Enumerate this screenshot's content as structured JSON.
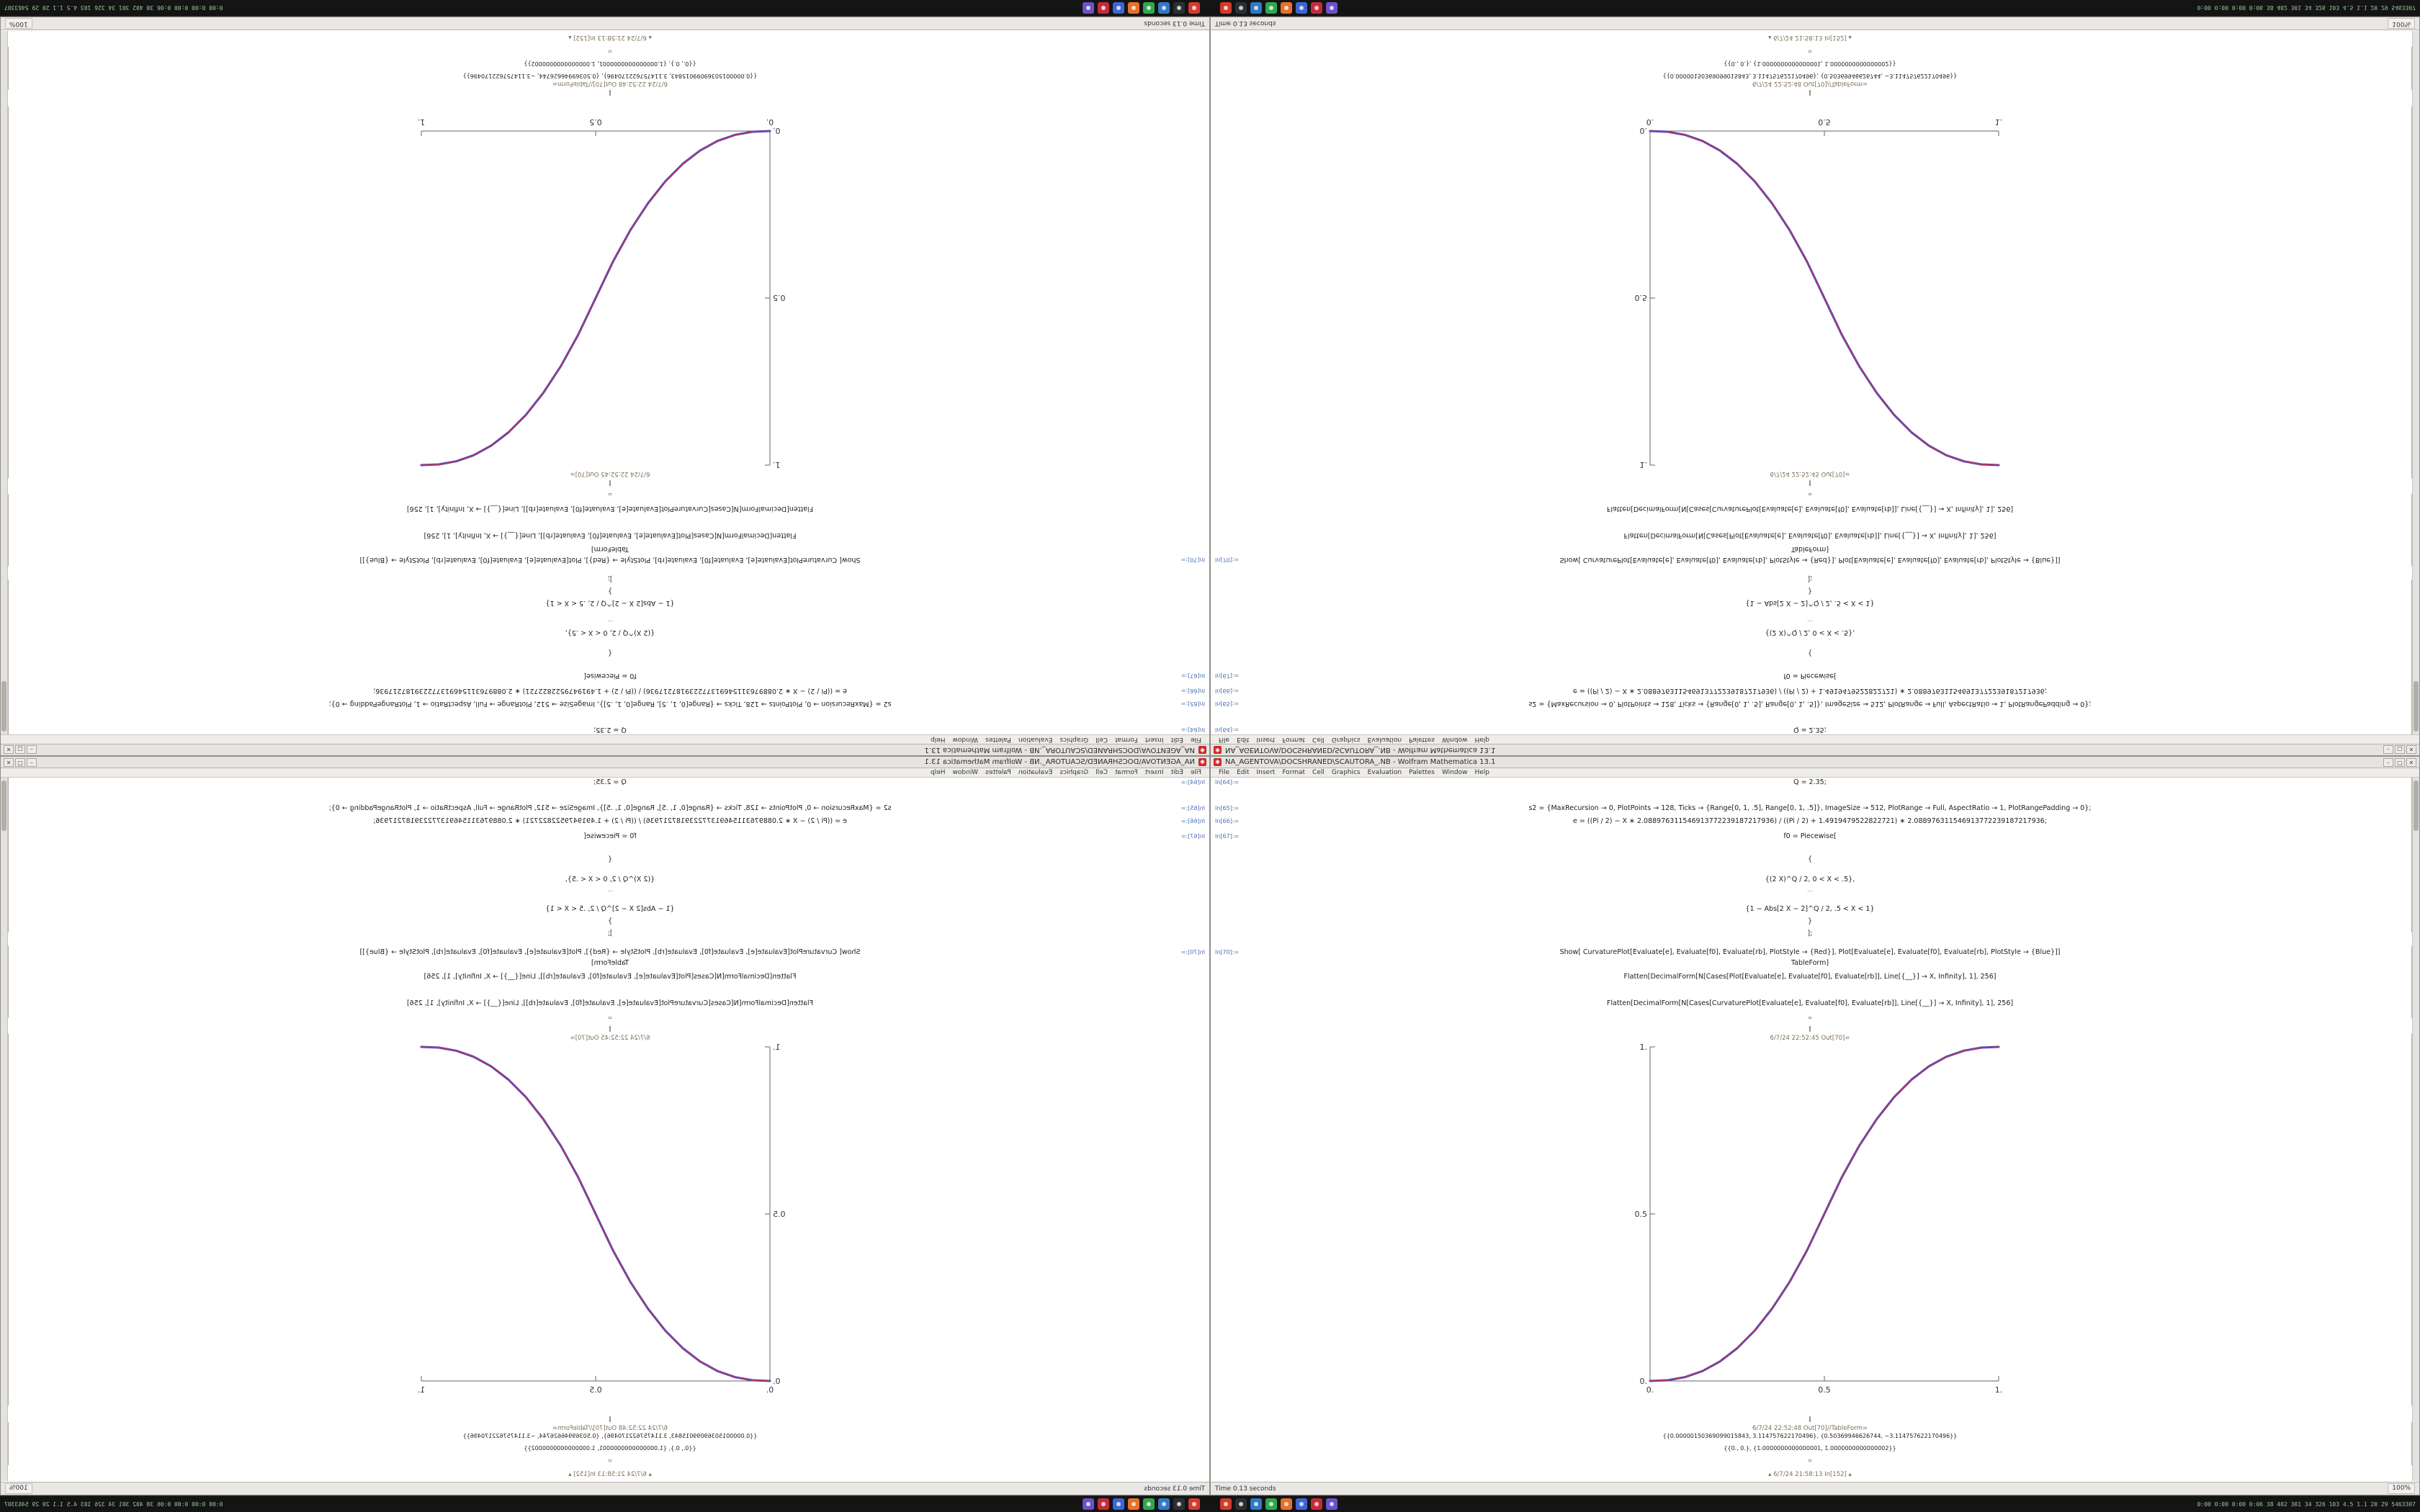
{
  "window": {
    "title": "NA_AGENTOVA\\DOCSHRANED\\SCAUTORA_.NB - Wolfram Mathematica 13.1",
    "app_icon_glyph": "✱",
    "menu": [
      "File",
      "Edit",
      "Insert",
      "Format",
      "Cell",
      "Graphics",
      "Evaluation",
      "Palettes",
      "Window",
      "Help"
    ],
    "controls": {
      "minimize": "–",
      "maximize": "□",
      "close": "✕"
    },
    "status": {
      "time": "Time 0.13 seconds",
      "zoom": "100%"
    }
  },
  "notebook": {
    "in_labels": [
      {
        "t": "In[64]:="
      },
      {
        "t": "In[65]:="
      },
      {
        "t": "In[66]:="
      },
      {
        "t": "In[67]:="
      },
      {
        "t": "In[70]:="
      }
    ],
    "lines": [
      "Q = 2.35;",
      "s2 = {MaxRecursion → 0, PlotPoints → 128, Ticks → {Range[0, 1, .5], Range[0, 1, .5]}, ImageSize → 512, PlotRange → Full, AspectRatio → 1, PlotRangePadding → 0};",
      "e = ((Pi / 2) − X ∗ 2.088976311546913772239187217936) / ((Pi / 2) + 1.4919479522822721) ∗ 2.088976311546913772239187217936;",
      "f0 = Piecewise[",
      "{",
      "{(2 X)^Q / 2, 0 < X < .5},",
      "…",
      "{1 − Abs[2 X − 2]^Q / 2, .5 < X < 1}",
      "}",
      "];",
      "Show[ CurvaturePlot[Evaluate[e], Evaluate[f0], Evaluate[rb], PlotStyle → {Red}],  Plot[Evaluate[e], Evaluate[f0], Evaluate[rb], PlotStyle → {Blue}]]",
      "TableForm]",
      "Flatten[DecimalForm[N[Cases[Plot[Evaluate[e], Evaluate[f0], Evaluate[rb]], Line[{__}] → X, Infinity], 1], 256]",
      "Flatten[DecimalForm[N[Cases[CurvaturePlot[Evaluate[e], Evaluate[f0], Evaluate[rb]], Line[{__}] → X, Infinity], 1], 256]",
      "=",
      "‖",
      "6/7/24 22:52:45 Out[70]=",
      "‖",
      "6/7/24 22:52:48 Out[70]//TableForm=",
      "{{0.00000150369099015843, 3.114757622170496}, {0.50369946626744, −3.114757622170496}}",
      "{{0., 0.}, {1.0000000000000001, 1.0000000000000002}}",
      "=",
      "▴   6/7/24 21:58:13  In[152]   ▴"
    ]
  },
  "chart_data": {
    "type": "line",
    "title": "",
    "xlabel": "",
    "ylabel": "",
    "xlim": [
      0,
      1
    ],
    "ylim": [
      0,
      1
    ],
    "grid": false,
    "legend": false,
    "xticks": [
      "0.",
      "0.5",
      "1."
    ],
    "yticks": [
      "0.",
      "0.5",
      "1."
    ],
    "x": [
      0,
      0.05,
      0.1,
      0.15,
      0.2,
      0.25,
      0.3,
      0.35,
      0.4,
      0.45,
      0.5,
      0.55,
      0.6,
      0.65,
      0.7,
      0.75,
      0.8,
      0.85,
      0.9,
      0.95,
      1
    ],
    "series": [
      {
        "name": "Blue",
        "color": "#3b3fc4",
        "values": [
          0,
          0.0022,
          0.0114,
          0.0295,
          0.058,
          0.0981,
          0.1505,
          0.2163,
          0.296,
          0.3903,
          0.5,
          0.6097,
          0.704,
          0.7837,
          0.8495,
          0.9019,
          0.942,
          0.9705,
          0.9886,
          0.9978,
          1
        ]
      },
      {
        "name": "Red",
        "color": "#c43b55",
        "values": [
          0,
          0.0022,
          0.0114,
          0.0295,
          0.058,
          0.0981,
          0.1505,
          0.2163,
          0.296,
          0.3903,
          0.5,
          0.6097,
          0.704,
          0.7837,
          0.8495,
          0.9019,
          0.942,
          0.9705,
          0.9886,
          0.9978,
          1
        ]
      }
    ]
  },
  "taskbar": {
    "icons": [
      {
        "name": "launcher-red-icon",
        "color": "#d23b2e"
      },
      {
        "name": "terminal-icon",
        "color": "#2b2f33"
      },
      {
        "name": "files-icon",
        "color": "#3178c6"
      },
      {
        "name": "chat-green-icon",
        "color": "#2fa84f"
      },
      {
        "name": "browser-orange-icon",
        "color": "#e8702a"
      },
      {
        "name": "mail-blue-icon",
        "color": "#3b66d4"
      },
      {
        "name": "media-red-icon",
        "color": "#c42b3a"
      },
      {
        "name": "settings-purple-icon",
        "color": "#6c51c9"
      }
    ],
    "tray": "0:00 0:00 0:00 0:06  38 402 301 34 326 103  4.5 1.1  20 29  5463307"
  }
}
